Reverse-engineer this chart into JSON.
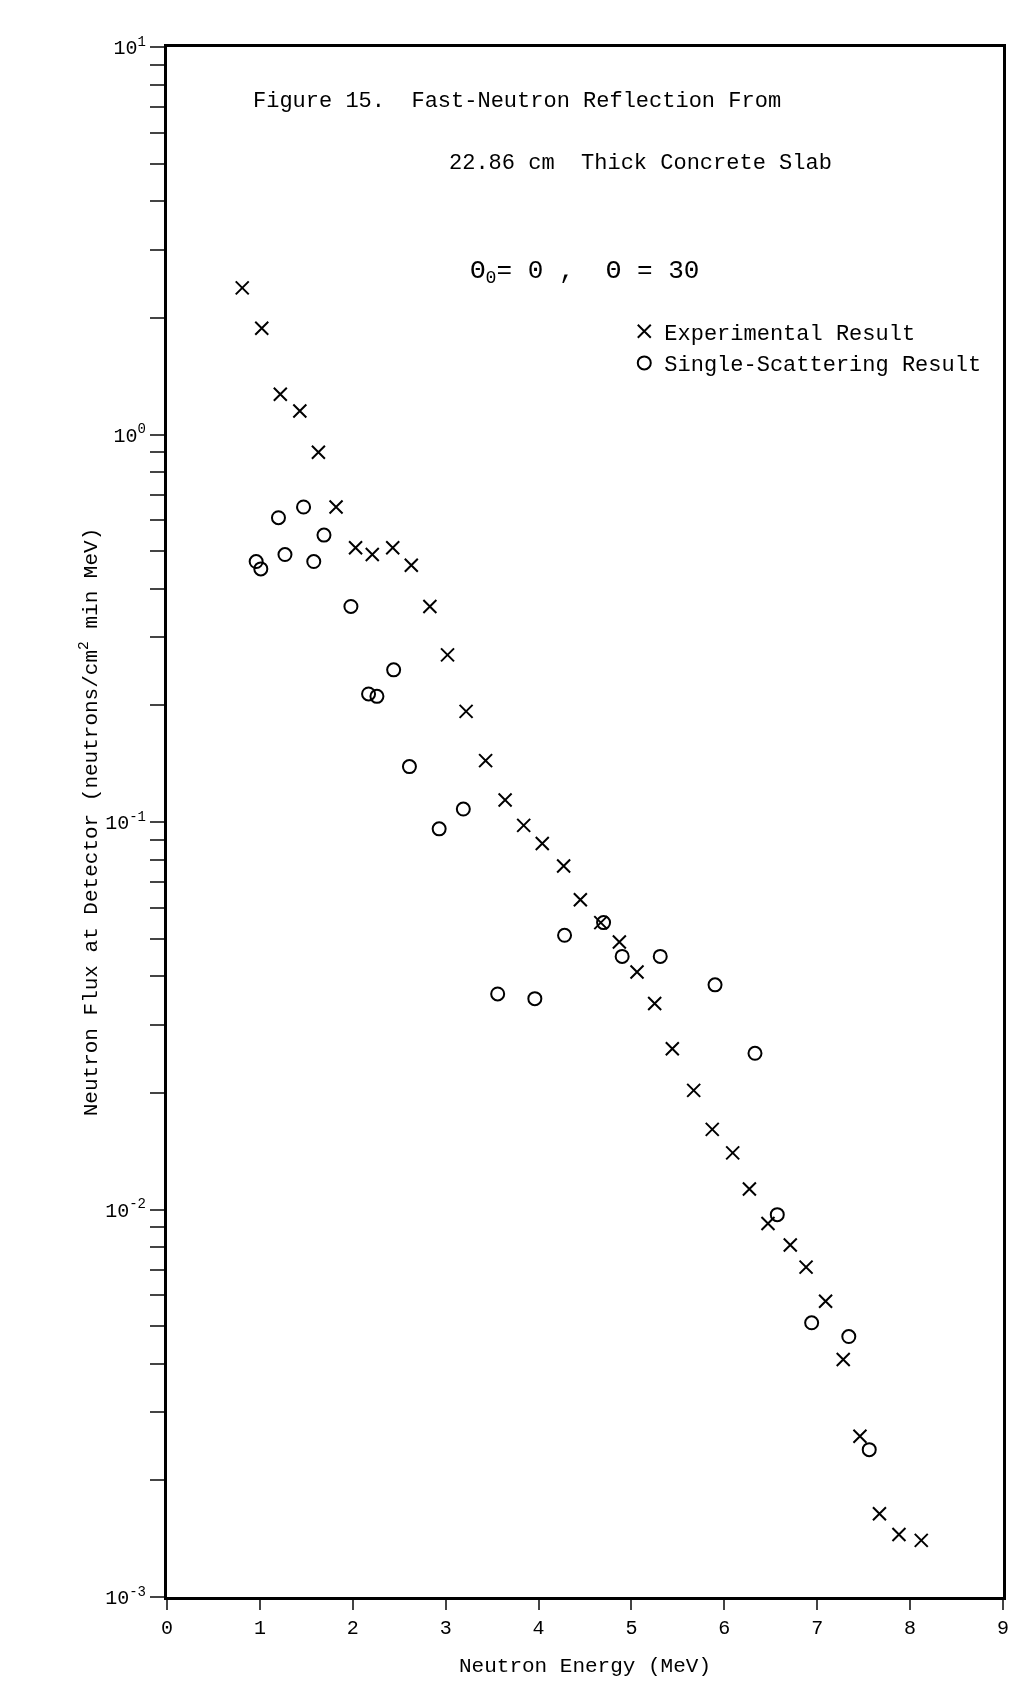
{
  "chart_data": {
    "type": "scatter",
    "title": "Figure 15.  Fast-Neutron Reflection From",
    "subtitle": "22.86 cm  Thick Concrete Slab",
    "xlabel": "Neutron Energy (MeV)",
    "ylabel": "Neutron Flux at Detector (neutrons/cm$^{2}$ min MeV)",
    "annotations": [
      "Θ$_{0}$= 0 ,  Θ = 30"
    ],
    "log": "y",
    "grid": false,
    "legend": "top right",
    "xlim": [
      0,
      9
    ],
    "xticks": [
      0,
      1,
      2,
      3,
      4,
      5,
      6,
      7,
      8,
      9
    ],
    "ylim": [
      0.001,
      10
    ],
    "yticks": [
      {
        "value": 0.001,
        "label": "10$^{-3}$"
      },
      {
        "value": 0.002,
        "label": null
      },
      {
        "value": 0.003,
        "label": null
      },
      {
        "value": 0.004,
        "label": null
      },
      {
        "value": 0.005,
        "label": null
      },
      {
        "value": 0.006,
        "label": null
      },
      {
        "value": 0.007,
        "label": null
      },
      {
        "value": 0.008,
        "label": null
      },
      {
        "value": 0.009,
        "label": null
      },
      {
        "value": 0.01,
        "label": "10$^{-2}$"
      },
      {
        "value": 0.02,
        "label": null
      },
      {
        "value": 0.03,
        "label": null
      },
      {
        "value": 0.04,
        "label": null
      },
      {
        "value": 0.05,
        "label": null
      },
      {
        "value": 0.06,
        "label": null
      },
      {
        "value": 0.07,
        "label": null
      },
      {
        "value": 0.08,
        "label": null
      },
      {
        "value": 0.09,
        "label": null
      },
      {
        "value": 0.1,
        "label": "10$^{-1}$"
      },
      {
        "value": 0.2,
        "label": null
      },
      {
        "value": 0.3,
        "label": null
      },
      {
        "value": 0.4,
        "label": null
      },
      {
        "value": 0.5,
        "label": null
      },
      {
        "value": 0.6,
        "label": null
      },
      {
        "value": 0.7,
        "label": null
      },
      {
        "value": 0.8,
        "label": null
      },
      {
        "value": 0.9,
        "label": null
      },
      {
        "value": 1,
        "label": "10$^{0}$"
      },
      {
        "value": 2,
        "label": null
      },
      {
        "value": 3,
        "label": null
      },
      {
        "value": 4,
        "label": null
      },
      {
        "value": 5,
        "label": null
      },
      {
        "value": 6,
        "label": null
      },
      {
        "value": 7,
        "label": null
      },
      {
        "value": 8,
        "label": null
      },
      {
        "value": 9,
        "label": null
      },
      {
        "value": 10,
        "label": "10$^{1}$"
      }
    ],
    "series": [
      {
        "name": "Experimental Result",
        "color": "#000000",
        "marker": "cross",
        "x": [
          0.81,
          1.02,
          1.22,
          1.43,
          1.63,
          1.82,
          2.03,
          2.21,
          2.43,
          2.63,
          2.83,
          3.02,
          3.22,
          3.43,
          3.64,
          3.84,
          4.04,
          4.27,
          4.45,
          4.67,
          4.87,
          5.06,
          5.25,
          5.44,
          5.67,
          5.87,
          6.09,
          6.27,
          6.47,
          6.71,
          6.88,
          7.09,
          7.28,
          7.46,
          7.67,
          7.88,
          8.12
        ],
        "values": [
          2.39,
          1.88,
          1.27,
          1.15,
          0.9,
          0.65,
          0.51,
          0.49,
          0.51,
          0.46,
          0.36,
          0.27,
          0.193,
          0.144,
          0.114,
          0.098,
          0.088,
          0.077,
          0.063,
          0.055,
          0.049,
          0.041,
          0.034,
          0.026,
          0.0203,
          0.0161,
          0.014,
          0.0113,
          0.0092,
          0.0081,
          0.0071,
          0.0058,
          0.0041,
          0.0026,
          0.00164,
          0.00145,
          0.0014
        ]
      },
      {
        "name": "Single-Scattering Result",
        "color": "#000000",
        "marker": "circle",
        "x": [
          0.96,
          1.01,
          1.2,
          1.27,
          1.47,
          1.58,
          1.69,
          1.98,
          2.17,
          2.26,
          2.44,
          2.61,
          2.93,
          3.19,
          3.56,
          3.96,
          4.28,
          4.7,
          4.9,
          5.31,
          5.9,
          6.33,
          6.57,
          6.94,
          7.34,
          7.56
        ],
        "values": [
          0.47,
          0.45,
          0.61,
          0.49,
          0.65,
          0.47,
          0.55,
          0.36,
          0.214,
          0.211,
          0.247,
          0.139,
          0.096,
          0.108,
          0.036,
          0.035,
          0.051,
          0.055,
          0.045,
          0.045,
          0.038,
          0.0253,
          0.0097,
          0.0051,
          0.0047,
          0.0024
        ]
      }
    ]
  }
}
